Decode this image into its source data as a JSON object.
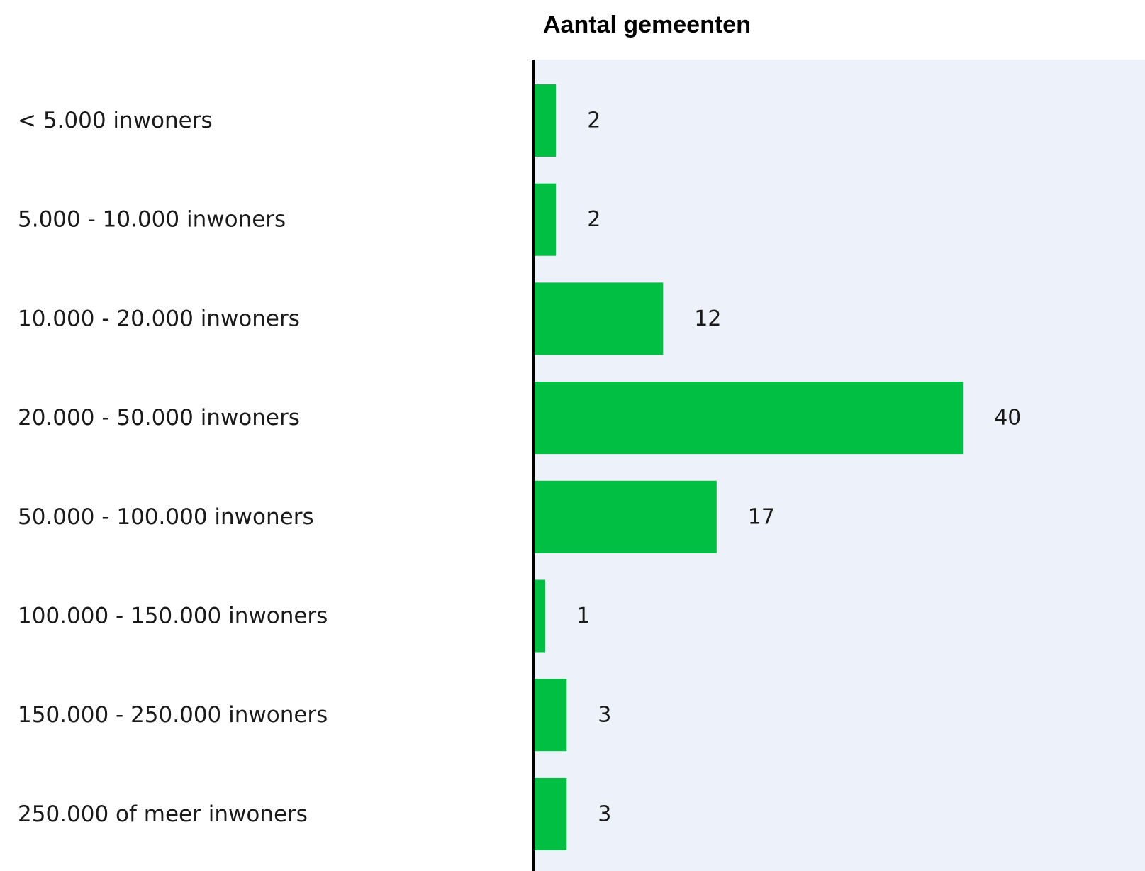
{
  "chart_data": {
    "type": "bar",
    "orientation": "horizontal",
    "title": "Aantal gemeenten",
    "categories": [
      "< 5.000 inwoners",
      "5.000 - 10.000 inwoners",
      "10.000 - 20.000 inwoners",
      "20.000 - 50.000 inwoners",
      "50.000 - 100.000 inwoners",
      "100.000 - 150.000 inwoners",
      "150.000 - 250.000 inwoners",
      "250.000 of meer inwoners"
    ],
    "values": [
      2,
      2,
      12,
      40,
      17,
      1,
      3,
      3
    ],
    "xlim": [
      0,
      57
    ],
    "grid": false,
    "legend": "none",
    "colors": {
      "bar": "#00bf42",
      "plot_background": "#edf1f9",
      "axis": "#000000",
      "text": "#1a1a1a"
    }
  }
}
